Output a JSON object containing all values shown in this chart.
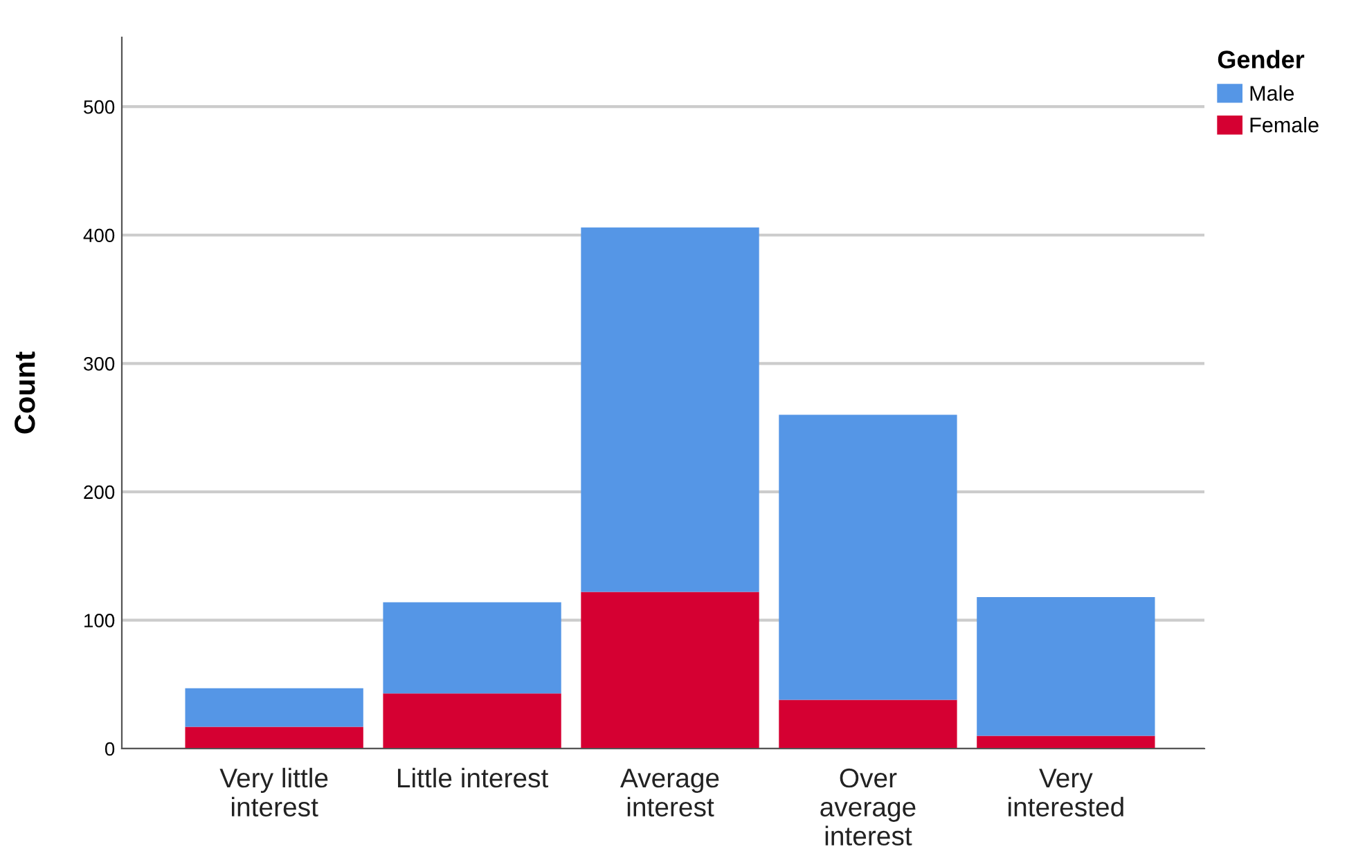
{
  "chart_data": {
    "type": "bar",
    "stacked": true,
    "ylabel": "Count",
    "legend_title": "Gender",
    "legend": "top right",
    "categories": [
      "Very little\ninterest",
      "Little interest",
      "Average\ninterest",
      "Over\naverage\ninterest",
      "Very\ninterested"
    ],
    "series": [
      {
        "name": "Female",
        "color": "#d50032",
        "values": [
          17,
          43,
          122,
          38,
          10
        ]
      },
      {
        "name": "Male",
        "color": "#5596e6",
        "values": [
          30,
          71,
          284,
          222,
          108
        ]
      }
    ],
    "ylim": [
      0,
      554
    ],
    "yticks": [
      0,
      100,
      200,
      300,
      400,
      500
    ],
    "grid": "y"
  }
}
